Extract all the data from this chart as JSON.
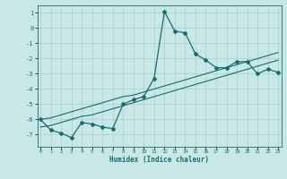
{
  "xlabel": "Humidex (Indice chaleur)",
  "bg_color": "#c8e8e8",
  "line_color": "#1a6b6b",
  "grid_color": "#a8cccc",
  "x_data": [
    0,
    1,
    2,
    3,
    4,
    5,
    6,
    7,
    8,
    9,
    10,
    11,
    12,
    13,
    14,
    15,
    16,
    17,
    18,
    19,
    20,
    21,
    22,
    23
  ],
  "y_main": [
    -6.0,
    -6.7,
    -6.9,
    -7.2,
    -6.2,
    -6.3,
    -6.5,
    -6.6,
    -5.0,
    -4.7,
    -4.5,
    -3.3,
    1.1,
    -0.2,
    -0.3,
    -1.7,
    -2.1,
    -2.6,
    -2.6,
    -2.2,
    -2.2,
    -3.0,
    -2.7,
    -2.9
  ],
  "y_line1": [
    -6.5,
    -6.4,
    -6.2,
    -6.0,
    -5.8,
    -5.7,
    -5.5,
    -5.3,
    -5.1,
    -4.9,
    -4.7,
    -4.5,
    -4.3,
    -4.1,
    -3.9,
    -3.7,
    -3.5,
    -3.3,
    -3.1,
    -2.9,
    -2.7,
    -2.5,
    -2.3,
    -2.1
  ],
  "y_line2": [
    -6.0,
    -5.9,
    -5.7,
    -5.5,
    -5.3,
    -5.1,
    -4.9,
    -4.7,
    -4.5,
    -4.4,
    -4.2,
    -4.0,
    -3.8,
    -3.6,
    -3.4,
    -3.2,
    -3.0,
    -2.8,
    -2.6,
    -2.4,
    -2.2,
    -2.0,
    -1.8,
    -1.6
  ],
  "ylim": [
    -7.8,
    1.5
  ],
  "xlim": [
    -0.3,
    23.3
  ],
  "yticks": [
    1,
    0,
    -1,
    -2,
    -3,
    -4,
    -5,
    -6,
    -7
  ],
  "xticks": [
    0,
    1,
    2,
    3,
    4,
    5,
    6,
    7,
    8,
    9,
    10,
    11,
    12,
    13,
    14,
    15,
    16,
    17,
    18,
    19,
    20,
    21,
    22,
    23
  ]
}
